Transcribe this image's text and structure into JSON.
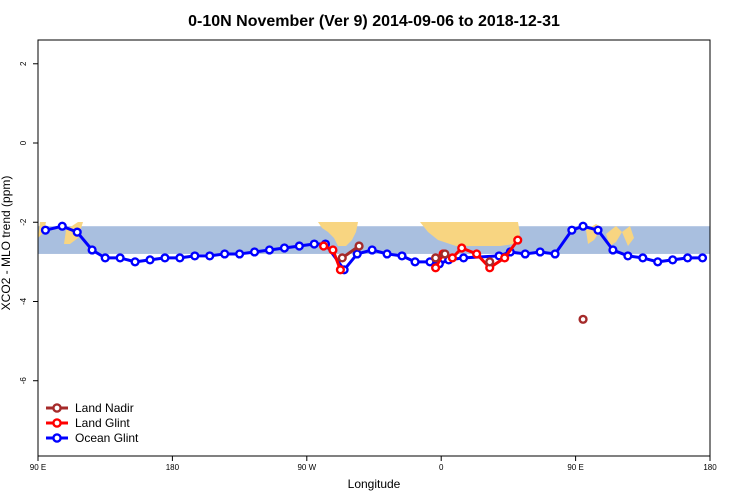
{
  "chart_data": {
    "type": "line",
    "title": "0-10N November (Ver 9)   2014-09-06 to 2018-12-31",
    "xlabel": "Longitude",
    "ylabel": "XCO2 - MLO trend (ppm)",
    "xlim": [
      90,
      450
    ],
    "ylim": [
      -7.9,
      2.6
    ],
    "x_ticks": [
      {
        "value": 90,
        "label": "90 E"
      },
      {
        "value": 162,
        "label": "180"
      },
      {
        "value": 234,
        "label": "90 W"
      },
      {
        "value": 306,
        "label": "0"
      },
      {
        "value": 378,
        "label": "90 E"
      },
      {
        "value": 450,
        "label": "180"
      }
    ],
    "y_ticks": [
      {
        "value": 2,
        "label": "2"
      },
      {
        "value": 0,
        "label": "0"
      },
      {
        "value": -2,
        "label": "-2"
      },
      {
        "value": -4,
        "label": "-4"
      },
      {
        "value": -6,
        "label": "-6"
      }
    ],
    "band": {
      "ymin": -2.8,
      "ymax": -2.1
    },
    "legend": {
      "position": "bottom-left"
    },
    "series": [
      {
        "name": "Land Nadir",
        "color": "#a52a2a",
        "x": [
          253,
          262,
          303,
          308,
          332,
          382
        ],
        "y": [
          -2.9,
          -2.6,
          -2.9,
          -2.8,
          -3.0,
          -4.45
        ]
      },
      {
        "name": "Land Glint",
        "color": "#ff0000",
        "x": [
          243,
          248,
          252,
          303,
          307,
          312,
          317,
          325,
          332,
          340,
          347
        ],
        "y": [
          -2.6,
          -2.7,
          -3.2,
          -3.15,
          -2.8,
          -2.9,
          -2.65,
          -2.8,
          -3.15,
          -2.9,
          -2.45
        ]
      },
      {
        "name": "Ocean Glint",
        "color": "#0000ff",
        "x": [
          94,
          103,
          111,
          119,
          126,
          134,
          142,
          150,
          158,
          166,
          174,
          182,
          190,
          198,
          206,
          214,
          222,
          230,
          238,
          244,
          254,
          261,
          269,
          277,
          285,
          292,
          300,
          305,
          310,
          318,
          337,
          343,
          351,
          359,
          367,
          376,
          382,
          390,
          398,
          406,
          414,
          422,
          430,
          438,
          446
        ],
        "y": [
          -2.2,
          -2.1,
          -2.25,
          -2.7,
          -2.9,
          -2.9,
          -3.0,
          -2.95,
          -2.9,
          -2.9,
          -2.85,
          -2.85,
          -2.8,
          -2.8,
          -2.75,
          -2.7,
          -2.65,
          -2.6,
          -2.55,
          -2.55,
          -3.2,
          -2.8,
          -2.7,
          -2.8,
          -2.85,
          -3.0,
          -3.0,
          -3.05,
          -2.95,
          -2.9,
          -2.85,
          -2.75,
          -2.8,
          -2.75,
          -2.8,
          -2.2,
          -2.1,
          -2.2,
          -2.7,
          -2.85,
          -2.9,
          -3.0,
          -2.95,
          -2.9,
          -2.9
        ]
      }
    ]
  }
}
